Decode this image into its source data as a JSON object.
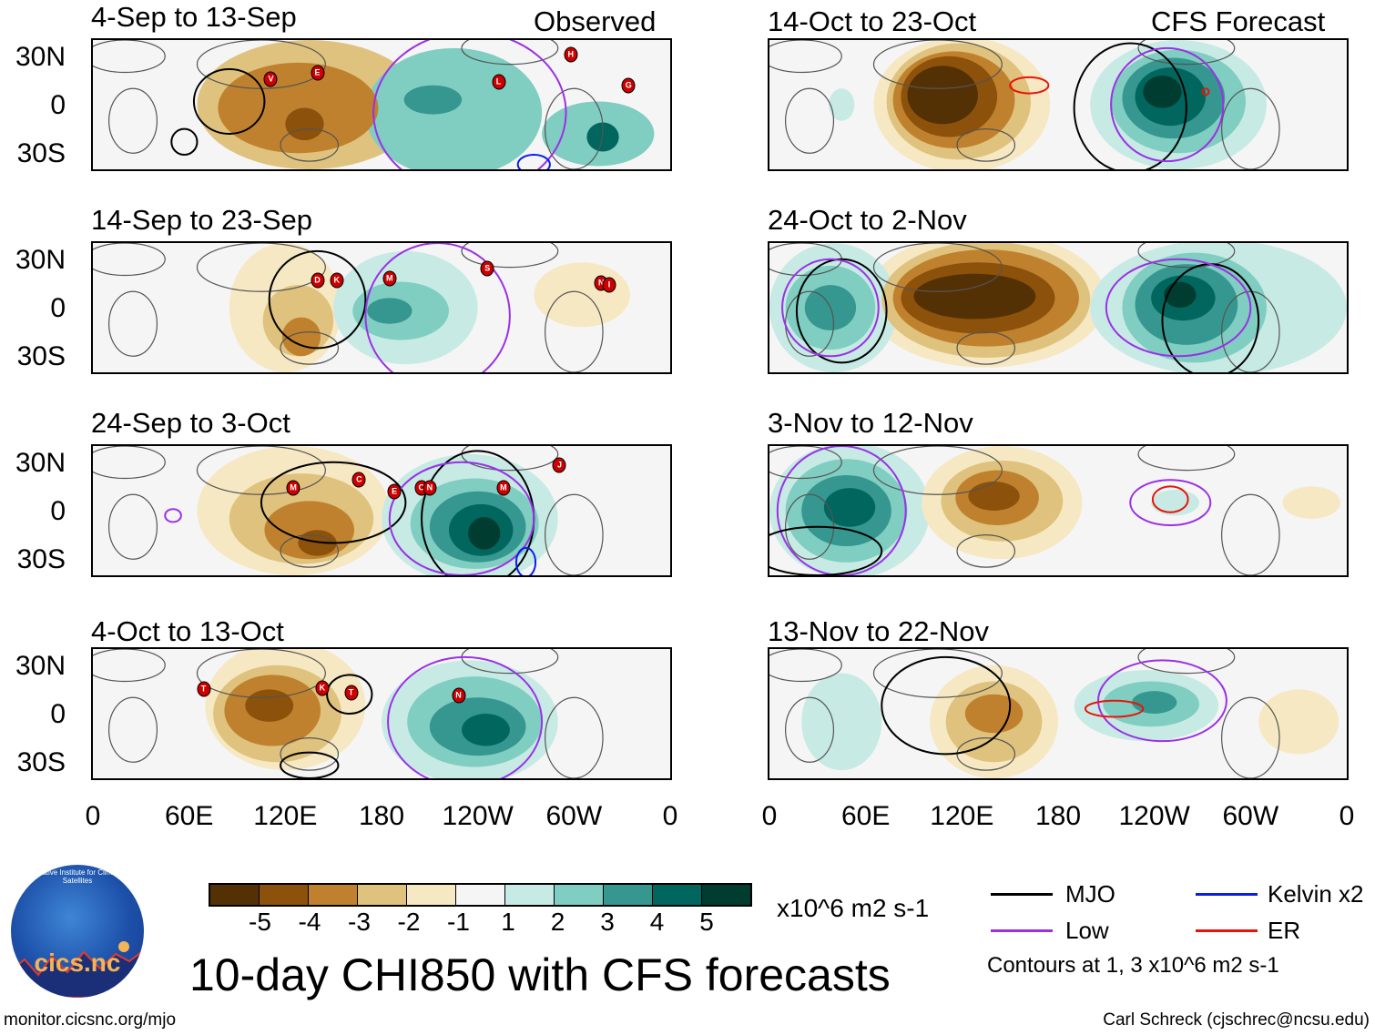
{
  "colors": {
    "levels": [
      "#543005",
      "#8c510a",
      "#bf812d",
      "#dfc27d",
      "#f6e8c3",
      "#f5f5f5",
      "#c7eae5",
      "#80cdc1",
      "#35978f",
      "#01665e",
      "#003c30"
    ],
    "mjo": "#000000",
    "low": "#9b30e6",
    "kelvin": "#0a1ee8",
    "er": "#e8140a",
    "storm": "#cc0000"
  },
  "headers": {
    "observed": "Observed",
    "forecast": "CFS Forecast"
  },
  "lat_labels": [
    "30N",
    "0",
    "30S"
  ],
  "lon_labels": [
    "0",
    "60E",
    "120E",
    "180",
    "120W",
    "60W",
    "0"
  ],
  "panels": [
    {
      "title": "4-Sep to 13-Sep",
      "anomalies": [
        {
          "lon": 135,
          "lat": 0,
          "rlon": 70,
          "rlat": 40,
          "level": -2
        },
        {
          "lon": 128,
          "lat": -2,
          "rlon": 50,
          "rlat": 28,
          "level": -3
        },
        {
          "lon": 132,
          "lat": -12,
          "rlon": 12,
          "rlat": 10,
          "level": -4
        },
        {
          "lon": 225,
          "lat": -5,
          "rlon": 55,
          "rlat": 40,
          "level": 2
        },
        {
          "lon": 212,
          "lat": 3,
          "rlon": 18,
          "rlat": 9,
          "level": 3
        },
        {
          "lon": 315,
          "lat": -18,
          "rlon": 35,
          "rlat": 20,
          "level": 2
        },
        {
          "lon": 318,
          "lat": -20,
          "rlon": 10,
          "rlat": 9,
          "level": 4
        }
      ],
      "contours": [
        {
          "type": "mjo",
          "lon": 85,
          "lat": 2,
          "rlon": 22,
          "rlat": 20
        },
        {
          "type": "mjo",
          "lon": 57,
          "lat": -23,
          "rlon": 8,
          "rlat": 8
        },
        {
          "type": "low",
          "lon": 235,
          "lat": -5,
          "rlon": 60,
          "rlat": 50
        },
        {
          "type": "kelvin",
          "lon": 275,
          "lat": -37,
          "rlon": 10,
          "rlat": 6
        }
      ],
      "storms": [
        {
          "id": "V",
          "lon": 111,
          "lat": 16
        },
        {
          "id": "E",
          "lon": 140,
          "lat": 20
        },
        {
          "id": "L",
          "lon": 253,
          "lat": 14
        },
        {
          "id": "H",
          "lon": 298,
          "lat": 31
        },
        {
          "id": "G",
          "lon": 334,
          "lat": 12
        }
      ]
    },
    {
      "title": "14-Sep to 23-Sep",
      "anomalies": [
        {
          "lon": 120,
          "lat": 0,
          "rlon": 35,
          "rlat": 40,
          "level": -1
        },
        {
          "lon": 128,
          "lat": -8,
          "rlon": 22,
          "rlat": 22,
          "level": -2
        },
        {
          "lon": 130,
          "lat": -18,
          "rlon": 12,
          "rlat": 12,
          "level": -3
        },
        {
          "lon": 195,
          "lat": 0,
          "rlon": 45,
          "rlat": 35,
          "level": 1
        },
        {
          "lon": 192,
          "lat": -2,
          "rlon": 30,
          "rlat": 18,
          "level": 2
        },
        {
          "lon": 185,
          "lat": -2,
          "rlon": 14,
          "rlat": 8,
          "level": 3
        },
        {
          "lon": 305,
          "lat": 8,
          "rlon": 30,
          "rlat": 20,
          "level": -1
        }
      ],
      "contours": [
        {
          "type": "mjo",
          "lon": 140,
          "lat": 5,
          "rlon": 30,
          "rlat": 30
        },
        {
          "type": "low",
          "lon": 215,
          "lat": -5,
          "rlon": 45,
          "rlat": 45
        }
      ],
      "storms": [
        {
          "id": "D",
          "lon": 140,
          "lat": 17
        },
        {
          "id": "K",
          "lon": 152,
          "lat": 17
        },
        {
          "id": "M",
          "lon": 185,
          "lat": 18
        },
        {
          "id": "S",
          "lon": 246,
          "lat": 24
        },
        {
          "id": "N",
          "lon": 317,
          "lat": 15
        },
        {
          "id": "I",
          "lon": 322,
          "lat": 14
        }
      ]
    },
    {
      "title": "24-Sep to 3-Oct",
      "anomalies": [
        {
          "lon": 125,
          "lat": 0,
          "rlon": 60,
          "rlat": 40,
          "level": -1
        },
        {
          "lon": 130,
          "lat": -5,
          "rlon": 45,
          "rlat": 28,
          "level": -2
        },
        {
          "lon": 135,
          "lat": -12,
          "rlon": 28,
          "rlat": 18,
          "level": -3
        },
        {
          "lon": 140,
          "lat": -20,
          "rlon": 12,
          "rlat": 8,
          "level": -4
        },
        {
          "lon": 235,
          "lat": -5,
          "rlon": 55,
          "rlat": 40,
          "level": 1
        },
        {
          "lon": 238,
          "lat": -8,
          "rlon": 40,
          "rlat": 28,
          "level": 2
        },
        {
          "lon": 240,
          "lat": -10,
          "rlon": 30,
          "rlat": 22,
          "level": 3
        },
        {
          "lon": 242,
          "lat": -12,
          "rlon": 20,
          "rlat": 16,
          "level": 4
        },
        {
          "lon": 244,
          "lat": -14,
          "rlon": 10,
          "rlat": 10,
          "level": 5
        }
      ],
      "contours": [
        {
          "type": "mjo",
          "lon": 150,
          "lat": 5,
          "rlon": 45,
          "rlat": 25
        },
        {
          "type": "mjo",
          "lon": 240,
          "lat": -5,
          "rlon": 35,
          "rlat": 42
        },
        {
          "type": "low",
          "lon": 230,
          "lat": -5,
          "rlon": 45,
          "rlat": 35
        },
        {
          "type": "low",
          "lon": 50,
          "lat": -3,
          "rlon": 5,
          "rlat": 4
        },
        {
          "type": "kelvin",
          "lon": 270,
          "lat": -32,
          "rlon": 6,
          "rlat": 9
        }
      ],
      "storms": [
        {
          "id": "M",
          "lon": 125,
          "lat": 14
        },
        {
          "id": "C",
          "lon": 166,
          "lat": 19
        },
        {
          "id": "E",
          "lon": 188,
          "lat": 12
        },
        {
          "id": "O",
          "lon": 205,
          "lat": 14
        },
        {
          "id": "N",
          "lon": 210,
          "lat": 14
        },
        {
          "id": "M",
          "lon": 256,
          "lat": 14
        },
        {
          "id": "J",
          "lon": 291,
          "lat": 28
        }
      ]
    },
    {
      "title": "4-Oct to 13-Oct",
      "anomalies": [
        {
          "lon": 120,
          "lat": 5,
          "rlon": 50,
          "rlat": 40,
          "level": -1
        },
        {
          "lon": 115,
          "lat": 0,
          "rlon": 40,
          "rlat": 30,
          "level": -2
        },
        {
          "lon": 112,
          "lat": 2,
          "rlon": 30,
          "rlat": 22,
          "level": -3
        },
        {
          "lon": 110,
          "lat": 5,
          "rlon": 15,
          "rlat": 10,
          "level": -4
        },
        {
          "lon": 235,
          "lat": -5,
          "rlon": 55,
          "rlat": 38,
          "level": 1
        },
        {
          "lon": 238,
          "lat": -5,
          "rlon": 42,
          "rlat": 28,
          "level": 2
        },
        {
          "lon": 240,
          "lat": -8,
          "rlon": 30,
          "rlat": 18,
          "level": 3
        },
        {
          "lon": 245,
          "lat": -10,
          "rlon": 15,
          "rlat": 10,
          "level": 4
        }
      ],
      "contours": [
        {
          "type": "mjo",
          "lon": 160,
          "lat": 12,
          "rlon": 14,
          "rlat": 12
        },
        {
          "type": "mjo",
          "lon": 135,
          "lat": -32,
          "rlon": 18,
          "rlat": 8
        },
        {
          "type": "low",
          "lon": 232,
          "lat": -5,
          "rlon": 48,
          "rlat": 40
        }
      ],
      "storms": [
        {
          "id": "T",
          "lon": 69,
          "lat": 15
        },
        {
          "id": "K",
          "lon": 143,
          "lat": 16
        },
        {
          "id": "T",
          "lon": 161,
          "lat": 13
        },
        {
          "id": "N",
          "lon": 228,
          "lat": 11
        }
      ]
    },
    {
      "title": "14-Oct to 23-Oct",
      "anomalies": [
        {
          "lon": 120,
          "lat": 0,
          "rlon": 55,
          "rlat": 42,
          "level": -1
        },
        {
          "lon": 118,
          "lat": 2,
          "rlon": 45,
          "rlat": 36,
          "level": -2
        },
        {
          "lon": 115,
          "lat": 3,
          "rlon": 38,
          "rlat": 30,
          "level": -3
        },
        {
          "lon": 112,
          "lat": 5,
          "rlon": 30,
          "rlat": 25,
          "level": -4
        },
        {
          "lon": 108,
          "lat": 6,
          "rlon": 22,
          "rlat": 18,
          "level": -5
        },
        {
          "lon": 255,
          "lat": 0,
          "rlon": 55,
          "rlat": 40,
          "level": 1
        },
        {
          "lon": 255,
          "lat": 2,
          "rlon": 42,
          "rlat": 32,
          "level": 2
        },
        {
          "lon": 252,
          "lat": 4,
          "rlon": 32,
          "rlat": 25,
          "level": 3
        },
        {
          "lon": 250,
          "lat": 5,
          "rlon": 22,
          "rlat": 18,
          "level": 4
        },
        {
          "lon": 245,
          "lat": 8,
          "rlon": 12,
          "rlat": 10,
          "level": 5
        },
        {
          "lon": 45,
          "lat": 0,
          "rlon": 8,
          "rlat": 10,
          "level": 1
        }
      ],
      "contours": [
        {
          "type": "mjo",
          "lon": 225,
          "lat": -2,
          "rlon": 35,
          "rlat": 40
        },
        {
          "type": "low",
          "lon": 248,
          "lat": 0,
          "rlon": 35,
          "rlat": 35
        },
        {
          "type": "er",
          "lon": 162,
          "lat": 12,
          "rlon": 12,
          "rlat": 5
        },
        {
          "type": "er",
          "lon": 272,
          "lat": 8,
          "rlon": 2,
          "rlat": 2
        }
      ],
      "storms": []
    },
    {
      "title": "24-Oct to 2-Nov",
      "anomalies": [
        {
          "lon": 135,
          "lat": 5,
          "rlon": 75,
          "rlat": 42,
          "level": -1
        },
        {
          "lon": 135,
          "lat": 5,
          "rlon": 65,
          "rlat": 36,
          "level": -2
        },
        {
          "lon": 135,
          "lat": 6,
          "rlon": 58,
          "rlat": 30,
          "level": -3
        },
        {
          "lon": 130,
          "lat": 6,
          "rlon": 48,
          "rlat": 22,
          "level": -4
        },
        {
          "lon": 128,
          "lat": 7,
          "rlon": 38,
          "rlat": 14,
          "level": -5
        },
        {
          "lon": 40,
          "lat": 0,
          "rlon": 40,
          "rlat": 40,
          "level": 1
        },
        {
          "lon": 38,
          "lat": 0,
          "rlon": 28,
          "rlat": 26,
          "level": 2
        },
        {
          "lon": 38,
          "lat": 0,
          "rlon": 16,
          "rlat": 14,
          "level": 3
        },
        {
          "lon": 280,
          "lat": 0,
          "rlon": 80,
          "rlat": 42,
          "level": 1
        },
        {
          "lon": 265,
          "lat": 0,
          "rlon": 45,
          "rlat": 34,
          "level": 2
        },
        {
          "lon": 260,
          "lat": 2,
          "rlon": 32,
          "rlat": 25,
          "level": 3
        },
        {
          "lon": 258,
          "lat": 6,
          "rlon": 20,
          "rlat": 14,
          "level": 4
        },
        {
          "lon": 256,
          "lat": 8,
          "rlon": 10,
          "rlat": 8,
          "level": 5
        }
      ],
      "contours": [
        {
          "type": "mjo",
          "lon": 45,
          "lat": -2,
          "rlon": 28,
          "rlat": 32
        },
        {
          "type": "mjo",
          "lon": 275,
          "lat": -8,
          "rlon": 30,
          "rlat": 35
        },
        {
          "type": "low",
          "lon": 255,
          "lat": 0,
          "rlon": 45,
          "rlat": 30
        },
        {
          "type": "low",
          "lon": 38,
          "lat": 0,
          "rlon": 30,
          "rlat": 30
        }
      ],
      "storms": []
    },
    {
      "title": "3-Nov to 12-Nov",
      "anomalies": [
        {
          "lon": 50,
          "lat": 0,
          "rlon": 50,
          "rlat": 42,
          "level": 1
        },
        {
          "lon": 48,
          "lat": 0,
          "rlon": 38,
          "rlat": 32,
          "level": 2
        },
        {
          "lon": 48,
          "lat": 0,
          "rlon": 28,
          "rlat": 22,
          "level": 3
        },
        {
          "lon": 50,
          "lat": 2,
          "rlon": 16,
          "rlat": 12,
          "level": 4
        },
        {
          "lon": 145,
          "lat": 5,
          "rlon": 50,
          "rlat": 35,
          "level": -1
        },
        {
          "lon": 145,
          "lat": 6,
          "rlon": 38,
          "rlat": 25,
          "level": -2
        },
        {
          "lon": 142,
          "lat": 8,
          "rlon": 26,
          "rlat": 17,
          "level": -3
        },
        {
          "lon": 140,
          "lat": 9,
          "rlon": 16,
          "rlat": 9,
          "level": -4
        },
        {
          "lon": 253,
          "lat": 5,
          "rlon": 15,
          "rlat": 8,
          "level": 1
        },
        {
          "lon": 338,
          "lat": 5,
          "rlon": 18,
          "rlat": 10,
          "level": -1
        }
      ],
      "contours": [
        {
          "type": "low",
          "lon": 45,
          "lat": 0,
          "rlon": 40,
          "rlat": 40
        },
        {
          "type": "low",
          "lon": 250,
          "lat": 5,
          "rlon": 25,
          "rlat": 14
        },
        {
          "type": "er",
          "lon": 250,
          "lat": 7,
          "rlon": 11,
          "rlat": 8
        },
        {
          "type": "mjo",
          "lon": 30,
          "lat": -25,
          "rlon": 40,
          "rlat": 15
        }
      ],
      "storms": []
    },
    {
      "title": "13-Nov to 22-Nov",
      "anomalies": [
        {
          "lon": 140,
          "lat": -5,
          "rlon": 40,
          "rlat": 35,
          "level": -1
        },
        {
          "lon": 140,
          "lat": -5,
          "rlon": 30,
          "rlat": 25,
          "level": -2
        },
        {
          "lon": 140,
          "lat": 0,
          "rlon": 18,
          "rlat": 12,
          "level": -3
        },
        {
          "lon": 45,
          "lat": -5,
          "rlon": 25,
          "rlat": 30,
          "level": 1
        },
        {
          "lon": 235,
          "lat": 5,
          "rlon": 45,
          "rlat": 22,
          "level": 1
        },
        {
          "lon": 238,
          "lat": 6,
          "rlon": 30,
          "rlat": 14,
          "level": 2
        },
        {
          "lon": 240,
          "lat": 7,
          "rlon": 14,
          "rlat": 7,
          "level": 3
        },
        {
          "lon": 330,
          "lat": -5,
          "rlon": 25,
          "rlat": 20,
          "level": -1
        }
      ],
      "contours": [
        {
          "type": "mjo",
          "lon": 110,
          "lat": 5,
          "rlon": 40,
          "rlat": 30
        },
        {
          "type": "low",
          "lon": 245,
          "lat": 8,
          "rlon": 40,
          "rlat": 25
        },
        {
          "type": "er",
          "lon": 215,
          "lat": 3,
          "rlon": 18,
          "rlat": 5
        }
      ],
      "storms": []
    }
  ],
  "colorbar": {
    "labels": [
      "-5",
      "-4",
      "-3",
      "-2",
      "-1",
      "1",
      "2",
      "3",
      "4",
      "5"
    ],
    "units": "x10^6 m2 s-1"
  },
  "title": "10-day CHI850 with CFS forecasts",
  "legend": {
    "mjo": "MJO",
    "kelvin": "Kelvin x2",
    "low": "Low",
    "er": "ER",
    "note": "Contours at 1, 3 x10^6 m2 s-1"
  },
  "logo": {
    "name": "cics.nc",
    "arc": "Cooperative Institute for Climate and Satellites"
  },
  "footer": {
    "left": "monitor.cicsnc.org/mjo",
    "right": "Carl Schreck (cjschrec@ncsu.edu)"
  }
}
